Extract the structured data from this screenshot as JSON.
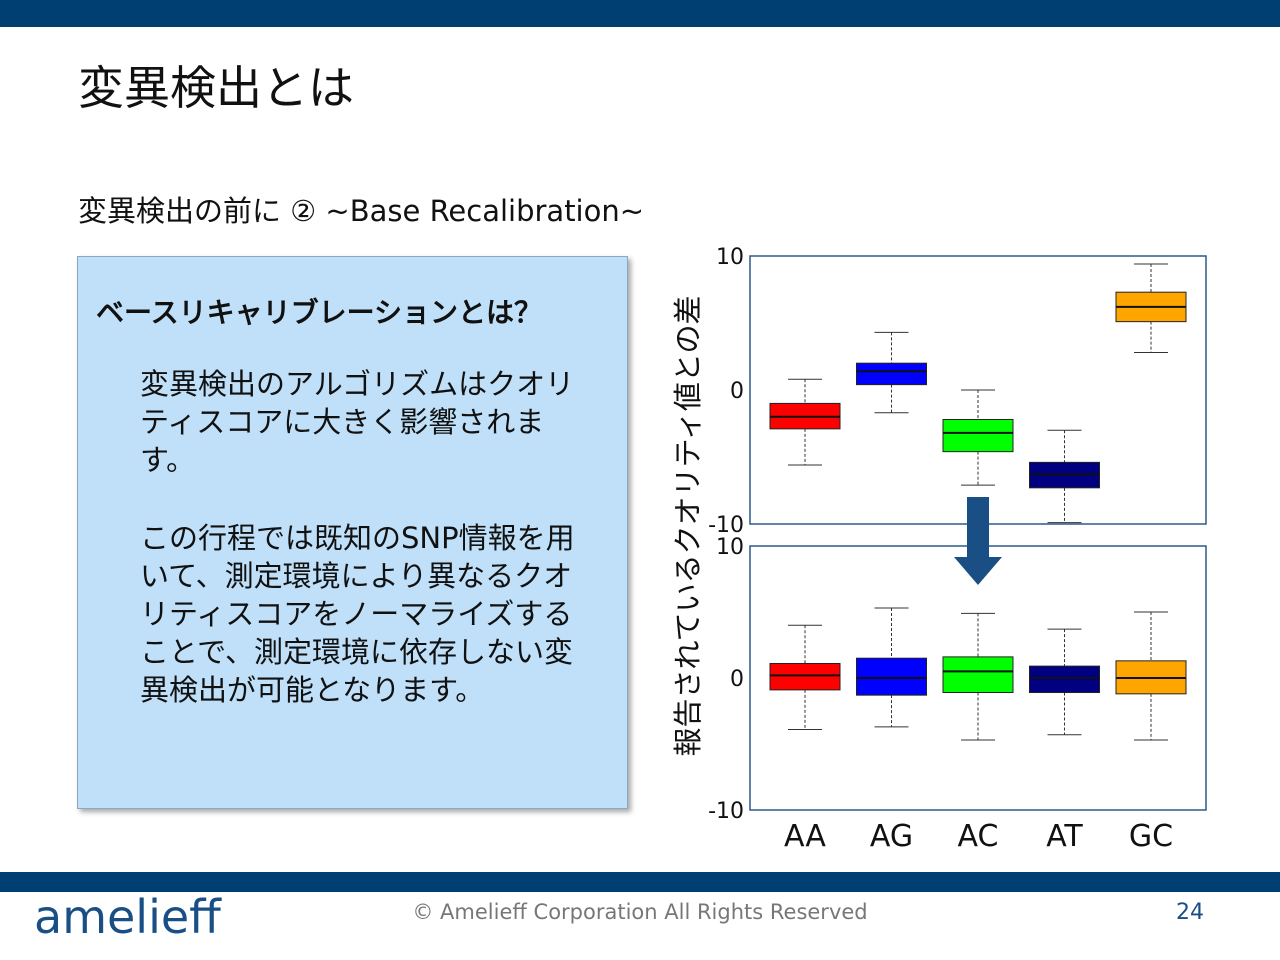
{
  "slide": {
    "title": "変異検出とは",
    "subtitle": "変異検出の前に ② ~Base Recalibration~",
    "footer": "© Amelieff Corporation All Rights Reserved",
    "page_number": "24",
    "logo_text": "amelieff"
  },
  "box": {
    "heading": "ベースリキャリブレーションとは？",
    "paragraph1": "変異検出のアルゴリズムはクオリティスコアに大きく影響されます。",
    "paragraph2": "この行程では既知のSNP情報を用いて、測定環境により異なるクオリティスコアをノーマライズすることで、測定環境に依存しない変異検出が可能となります。"
  },
  "colors": {
    "bar": "#003f72",
    "box_fill": "#bfe0f8",
    "arrow": "#1a4f86",
    "AA": "#ff0000",
    "AG": "#0000ff",
    "AC": "#00ff00",
    "AT": "#000080",
    "GC": "#ffa500"
  },
  "chart_data": {
    "type": "boxplot",
    "ylabel": "報告されているクオリティ値との差",
    "categories": [
      "AA",
      "AG",
      "AC",
      "AT",
      "GC"
    ],
    "panels": [
      {
        "name": "",
        "ylim": [
          -10,
          10
        ],
        "yticks": [
          "10",
          "0",
          "-10"
        ],
        "boxes": [
          {
            "category": "AA",
            "min": -5.6,
            "q1": -2.9,
            "median": -2.0,
            "q3": -1.0,
            "max": 0.8
          },
          {
            "category": "AG",
            "min": -1.7,
            "q1": 0.4,
            "median": 1.4,
            "q3": 2.0,
            "max": 4.3
          },
          {
            "category": "AC",
            "min": -7.1,
            "q1": -4.6,
            "median": -3.2,
            "q3": -2.2,
            "max": 0.0
          },
          {
            "category": "AT",
            "min": -9.9,
            "q1": -7.3,
            "median": -6.3,
            "q3": -5.4,
            "max": -3.0
          },
          {
            "category": "GC",
            "min": 2.8,
            "q1": 5.1,
            "median": 6.2,
            "q3": 7.3,
            "max": 9.4
          }
        ]
      },
      {
        "name": "",
        "ylim": [
          -10,
          10
        ],
        "yticks": [
          "10",
          "0",
          "-10"
        ],
        "boxes": [
          {
            "category": "AA",
            "min": -3.9,
            "q1": -0.9,
            "median": 0.2,
            "q3": 1.1,
            "max": 4.0
          },
          {
            "category": "AG",
            "min": -3.7,
            "q1": -1.3,
            "median": 0.0,
            "q3": 1.5,
            "max": 5.3
          },
          {
            "category": "AC",
            "min": -4.7,
            "q1": -1.1,
            "median": 0.5,
            "q3": 1.6,
            "max": 4.9
          },
          {
            "category": "AT",
            "min": -4.3,
            "q1": -1.1,
            "median": 0.0,
            "q3": 0.9,
            "max": 3.7
          },
          {
            "category": "GC",
            "min": -4.7,
            "q1": -1.2,
            "median": 0.0,
            "q3": 1.3,
            "max": 5.0
          }
        ]
      }
    ]
  }
}
